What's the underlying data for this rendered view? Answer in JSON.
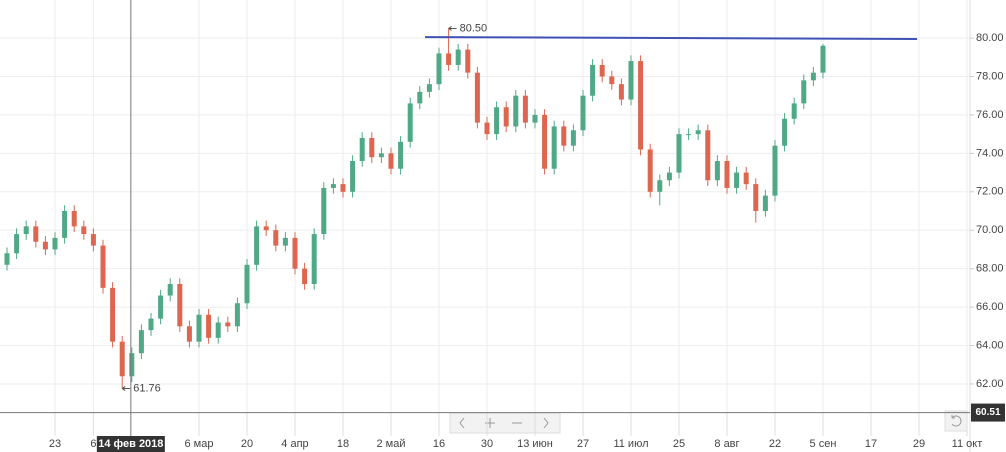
{
  "chart_data": {
    "type": "candlestick",
    "x": [
      -10,
      -8,
      -6,
      -4,
      -2,
      0,
      2,
      4,
      6,
      8,
      10,
      12,
      14,
      16,
      18,
      20,
      22,
      24,
      26,
      28,
      30,
      32,
      34,
      36,
      38,
      40,
      42,
      44,
      46,
      48,
      50,
      52,
      54,
      56,
      58,
      60,
      62,
      64,
      66,
      68,
      70,
      72,
      74,
      76,
      78,
      80,
      82,
      84,
      86,
      88,
      90,
      92,
      94,
      96,
      98,
      100,
      102,
      104,
      106,
      108,
      110,
      112,
      114,
      116,
      118,
      120,
      122,
      124,
      126,
      128,
      130,
      132,
      134,
      136,
      138,
      140,
      142,
      144,
      146,
      148,
      150,
      152,
      154,
      156,
      158,
      160
    ],
    "open": [
      68.2,
      68.8,
      69.8,
      70.2,
      69.4,
      69.0,
      69.6,
      71.0,
      70.2,
      69.8,
      69.2,
      67.0,
      64.2,
      62.4,
      63.6,
      64.8,
      65.4,
      66.6,
      67.2,
      65.0,
      64.2,
      65.6,
      64.4,
      65.2,
      65.0,
      66.2,
      68.2,
      70.2,
      70.0,
      69.2,
      69.6,
      68.0,
      67.2,
      69.8,
      72.2,
      72.4,
      72.0,
      73.6,
      74.8,
      73.8,
      74.0,
      73.2,
      74.6,
      76.6,
      77.2,
      77.6,
      79.2,
      78.6,
      79.4,
      78.2,
      75.6,
      75.0,
      76.4,
      75.4,
      77.0,
      75.6,
      76.0,
      73.2,
      75.4,
      74.4,
      75.2,
      77.0,
      78.6,
      78.0,
      77.6,
      76.8,
      78.8,
      74.2,
      72.0,
      72.6,
      73.0,
      75.0,
      75.0,
      75.2,
      72.6,
      73.6,
      72.2,
      73.0,
      72.4,
      71.0,
      71.8,
      74.4,
      75.8,
      76.6,
      77.8,
      78.2
    ],
    "high": [
      69.1,
      70.1,
      70.5,
      70.5,
      69.7,
      69.9,
      71.3,
      71.3,
      70.5,
      70.1,
      69.5,
      67.3,
      64.5,
      63.9,
      65.1,
      65.7,
      66.9,
      67.5,
      67.5,
      65.3,
      65.9,
      65.9,
      65.5,
      65.5,
      66.5,
      68.5,
      70.5,
      70.5,
      70.3,
      69.9,
      69.9,
      68.3,
      70.1,
      72.5,
      72.7,
      72.7,
      73.9,
      75.1,
      75.1,
      74.3,
      74.3,
      74.9,
      76.9,
      77.5,
      77.9,
      79.5,
      80.5,
      79.7,
      79.7,
      78.5,
      75.9,
      76.7,
      76.7,
      77.3,
      77.3,
      76.3,
      76.3,
      75.7,
      75.7,
      75.5,
      77.3,
      78.9,
      78.9,
      78.3,
      77.9,
      79.1,
      79.1,
      74.5,
      72.9,
      73.3,
      75.3,
      75.3,
      75.5,
      75.5,
      73.9,
      73.9,
      73.3,
      73.3,
      72.7,
      72.1,
      74.7,
      76.1,
      76.9,
      78.1,
      78.5,
      79.7
    ],
    "low": [
      67.9,
      68.5,
      69.5,
      69.1,
      68.7,
      68.7,
      69.3,
      69.9,
      69.5,
      68.9,
      66.7,
      63.9,
      61.76,
      62.1,
      63.3,
      64.5,
      65.1,
      66.3,
      64.7,
      63.9,
      63.9,
      64.1,
      64.1,
      64.7,
      64.7,
      65.9,
      67.9,
      69.7,
      68.9,
      68.9,
      67.7,
      66.9,
      66.9,
      69.5,
      71.9,
      71.7,
      71.7,
      73.3,
      73.5,
      73.5,
      72.9,
      72.9,
      74.3,
      76.3,
      76.9,
      77.3,
      78.3,
      78.3,
      77.9,
      75.3,
      74.7,
      74.7,
      75.1,
      75.1,
      75.3,
      75.3,
      72.9,
      72.9,
      74.1,
      74.1,
      74.9,
      76.7,
      77.7,
      77.3,
      76.5,
      76.5,
      73.9,
      71.7,
      71.3,
      72.3,
      72.7,
      74.7,
      74.7,
      72.3,
      72.3,
      71.9,
      71.9,
      72.1,
      70.4,
      70.7,
      71.5,
      74.1,
      75.5,
      76.3,
      77.5,
      77.9
    ],
    "close": [
      68.8,
      69.8,
      70.2,
      69.4,
      69.0,
      69.6,
      71.0,
      70.2,
      69.8,
      69.2,
      67.0,
      64.2,
      62.4,
      63.6,
      64.8,
      65.4,
      66.6,
      67.2,
      65.0,
      64.2,
      65.6,
      64.4,
      65.2,
      65.0,
      66.2,
      68.2,
      70.2,
      70.0,
      69.2,
      69.6,
      68.0,
      67.2,
      69.8,
      72.2,
      72.4,
      72.0,
      73.6,
      74.8,
      73.8,
      74.0,
      73.2,
      74.6,
      76.6,
      77.2,
      77.6,
      79.2,
      78.6,
      79.4,
      78.2,
      75.6,
      75.0,
      76.4,
      75.4,
      77.0,
      75.6,
      76.0,
      73.2,
      75.4,
      74.4,
      75.2,
      77.0,
      78.6,
      78.0,
      77.6,
      76.8,
      78.8,
      74.2,
      72.0,
      72.6,
      73.0,
      75.0,
      75.0,
      75.2,
      72.6,
      73.6,
      72.2,
      73.0,
      72.4,
      71.0,
      71.8,
      74.4,
      75.8,
      76.6,
      77.8,
      78.2,
      79.6
    ],
    "up_color": "#4fa886",
    "down_color": "#e0654f",
    "xlim": [
      -11.46,
      190.63
    ],
    "ylim": [
      60.54,
      81.98
    ],
    "xticks": [
      {
        "value": 0,
        "label": "23"
      },
      {
        "value": 8,
        "label": "6"
      },
      {
        "value": 30,
        "label": "6 мар"
      },
      {
        "value": 40,
        "label": "20"
      },
      {
        "value": 50,
        "label": "4 апр"
      },
      {
        "value": 60,
        "label": "18"
      },
      {
        "value": 70,
        "label": "2 май"
      },
      {
        "value": 80,
        "label": "16"
      },
      {
        "value": 90,
        "label": "30"
      },
      {
        "value": 100,
        "label": "13 июн"
      },
      {
        "value": 110,
        "label": "27"
      },
      {
        "value": 120,
        "label": "11 июл"
      },
      {
        "value": 130,
        "label": "25"
      },
      {
        "value": 140,
        "label": "8 авг"
      },
      {
        "value": 150,
        "label": "22"
      },
      {
        "value": 160,
        "label": "5 сен"
      },
      {
        "value": 170,
        "label": "17"
      },
      {
        "value": 180,
        "label": "29"
      },
      {
        "value": 190,
        "label": "11 окт"
      }
    ],
    "yticks": [
      {
        "value": 62,
        "label": "62.00"
      },
      {
        "value": 64,
        "label": "64.00"
      },
      {
        "value": 66,
        "label": "66.00"
      },
      {
        "value": 68,
        "label": "68.00"
      },
      {
        "value": 70,
        "label": "70.00"
      },
      {
        "value": 72,
        "label": "72.00"
      },
      {
        "value": 74,
        "label": "74.00"
      },
      {
        "value": 76,
        "label": "76.00"
      },
      {
        "value": 78,
        "label": "78.00"
      },
      {
        "value": 80,
        "label": "80.00"
      }
    ],
    "grid": true,
    "trend_line": {
      "x": [
        77.1,
        179.6
      ],
      "y": [
        80.05,
        79.95
      ],
      "color": "#3f51b5"
    },
    "price_labels": [
      {
        "x": 82,
        "value": 80.5,
        "label": "80.50"
      },
      {
        "x": 14,
        "value": 61.76,
        "label": "61.76"
      }
    ],
    "crosshair": {
      "x": 15.8,
      "x_label": "14 фев 2018",
      "y": 60.51
    }
  }
}
